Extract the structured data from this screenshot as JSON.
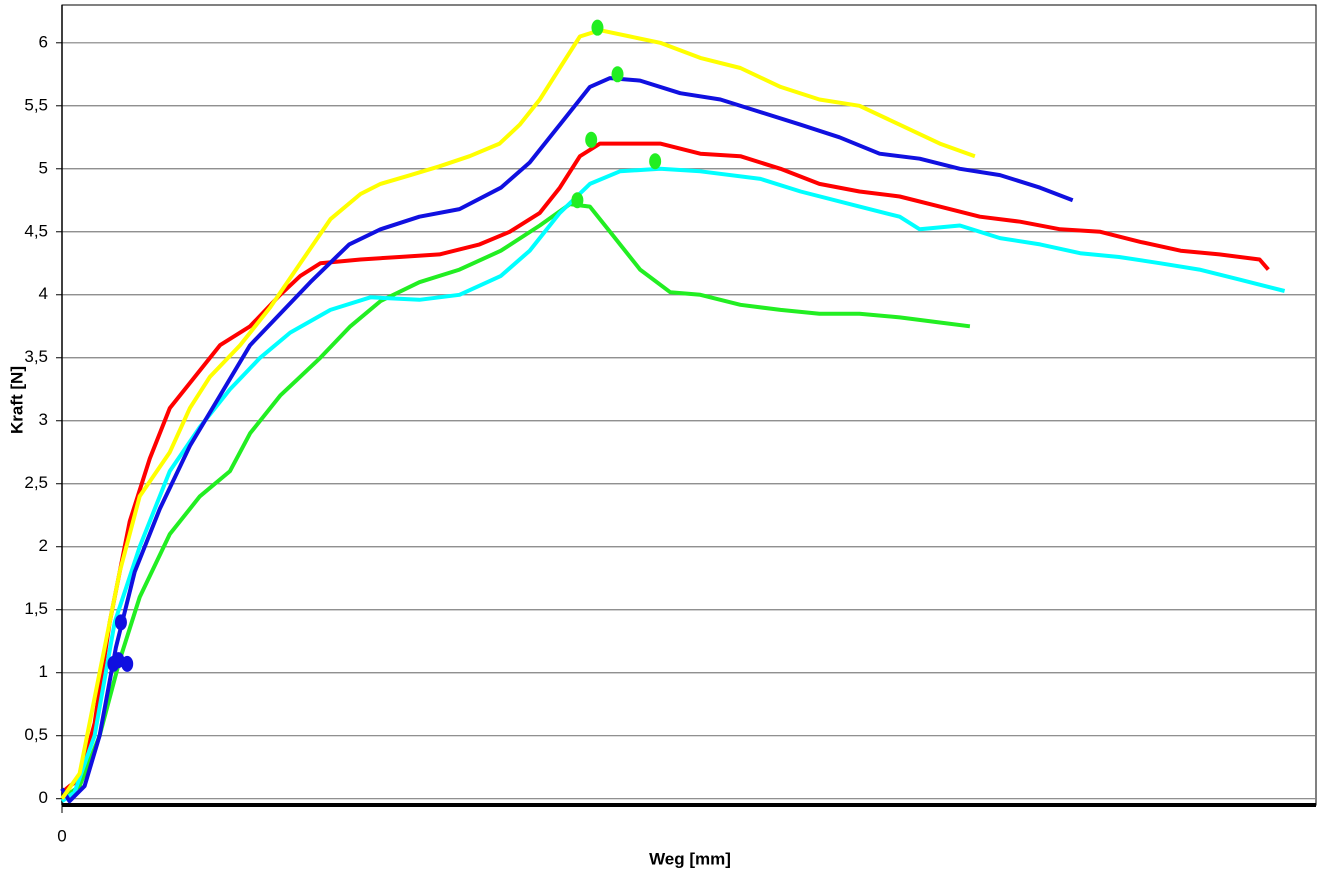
{
  "chart_data": {
    "type": "line",
    "xlabel": "Weg [mm]",
    "ylabel": "Kraft [N]",
    "xlim": [
      0,
      100
    ],
    "ylim": [
      -0.05,
      6.3
    ],
    "xticks": [
      0
    ],
    "yticks": [
      0,
      {
        "value": 0.5,
        "label": "0,5"
      },
      1,
      {
        "value": 1.5,
        "label": "1,5"
      },
      2,
      {
        "value": 2.5,
        "label": "2,5"
      },
      3,
      {
        "value": 3.5,
        "label": "3,5"
      },
      4,
      {
        "value": 4.5,
        "label": "4,5"
      },
      5,
      {
        "value": 5.5,
        "label": "5,5"
      },
      6
    ],
    "grid": true,
    "series": [
      {
        "color": "#ff0000",
        "x": [
          0,
          0.6,
          1.4,
          2.6,
          3.8,
          5.4,
          7,
          8.6,
          10.2,
          12.6,
          15,
          17.4,
          19,
          20.6,
          23.8,
          26.9,
          30.1,
          33.3,
          35.7,
          38.1,
          39.7,
          41.3,
          42.9,
          45.3,
          47.7,
          50.9,
          54.1,
          57.3,
          60.4,
          63.6,
          66.8,
          70,
          73.2,
          76.4,
          79.6,
          82.8,
          86,
          89.2,
          92.3,
          95.5,
          96.2
        ],
        "values": [
          0.05,
          0.1,
          0.15,
          0.6,
          1.4,
          2.2,
          2.7,
          3.1,
          3.3,
          3.6,
          3.75,
          4.0,
          4.15,
          4.25,
          4.28,
          4.3,
          4.32,
          4.4,
          4.5,
          4.65,
          4.85,
          5.1,
          5.2,
          5.2,
          5.2,
          5.12,
          5.1,
          5.0,
          4.88,
          4.82,
          4.78,
          4.7,
          4.62,
          4.58,
          4.52,
          4.5,
          4.42,
          4.35,
          4.32,
          4.28,
          4.2
        ]
      },
      {
        "color": "#22ee22",
        "x": [
          0,
          1.4,
          3,
          4.6,
          6.2,
          8.6,
          11,
          13.4,
          15,
          17.4,
          19,
          20.6,
          23,
          25.4,
          28.5,
          31.7,
          35,
          38.1,
          40.5,
          42.1,
          43.7,
          46.1,
          48.5,
          50.9,
          54.1,
          57.3,
          60.4,
          63.6,
          66.8,
          70,
          72.4
        ],
        "values": [
          0,
          0.1,
          0.5,
          1.1,
          1.6,
          2.1,
          2.4,
          2.6,
          2.9,
          3.2,
          3.35,
          3.5,
          3.75,
          3.95,
          4.1,
          4.2,
          4.35,
          4.55,
          4.72,
          4.7,
          4.5,
          4.2,
          4.02,
          4.0,
          3.92,
          3.88,
          3.85,
          3.85,
          3.82,
          3.78,
          3.75
        ]
      },
      {
        "color": "#00ffff",
        "x": [
          0,
          1,
          2.6,
          4.2,
          6.2,
          8.6,
          11,
          13.4,
          15.8,
          18.2,
          21.4,
          24.6,
          28.5,
          31.7,
          35,
          37.3,
          39.7,
          42.1,
          44.5,
          47.7,
          50.9,
          55.7,
          58.9,
          63.6,
          66.8,
          68.4,
          71.6,
          74.8,
          78,
          81.2,
          84.3,
          87.6,
          90.7,
          93.9,
          97.5
        ],
        "values": [
          -0.02,
          0.05,
          0.5,
          1.4,
          2.0,
          2.6,
          2.95,
          3.25,
          3.5,
          3.7,
          3.88,
          3.98,
          3.96,
          4.0,
          4.15,
          4.35,
          4.65,
          4.88,
          4.98,
          5.0,
          4.98,
          4.92,
          4.82,
          4.7,
          4.62,
          4.52,
          4.55,
          4.45,
          4.4,
          4.33,
          4.3,
          4.25,
          4.2,
          4.12,
          4.03
        ]
      },
      {
        "color": "#1010e0",
        "x": [
          0,
          0.6,
          1.8,
          3,
          4.3,
          5.8,
          7.8,
          10.2,
          12.6,
          15,
          17.4,
          19.8,
          22.9,
          25.4,
          28.5,
          31.7,
          35,
          37.3,
          39.7,
          42.1,
          43.7,
          46.1,
          49.3,
          52.5,
          55.7,
          58.9,
          62,
          65.2,
          68.4,
          71.6,
          74.8,
          78,
          80.6
        ],
        "values": [
          0.08,
          -0.02,
          0.1,
          0.5,
          1.2,
          1.8,
          2.3,
          2.8,
          3.2,
          3.6,
          3.85,
          4.1,
          4.4,
          4.52,
          4.62,
          4.68,
          4.85,
          5.05,
          5.35,
          5.65,
          5.72,
          5.7,
          5.6,
          5.55,
          5.45,
          5.35,
          5.25,
          5.12,
          5.08,
          5.0,
          4.95,
          4.85,
          4.75
        ]
      },
      {
        "color": "#ffff00",
        "x": [
          0,
          1.4,
          3,
          4.6,
          6.2,
          8.6,
          10.2,
          11.8,
          14.2,
          16.6,
          19,
          21.4,
          23.8,
          25.4,
          27.8,
          30.1,
          32.5,
          34.9,
          36.5,
          38.1,
          39.7,
          41.3,
          42.9,
          45.3,
          47.7,
          50.9,
          54.1,
          57.3,
          60.4,
          63.6,
          66.8,
          70,
          72.8
        ],
        "values": [
          0,
          0.2,
          1.0,
          1.8,
          2.4,
          2.75,
          3.1,
          3.35,
          3.6,
          3.9,
          4.25,
          4.6,
          4.8,
          4.88,
          4.95,
          5.02,
          5.1,
          5.2,
          5.35,
          5.55,
          5.8,
          6.05,
          6.1,
          6.05,
          6.0,
          5.88,
          5.8,
          5.65,
          5.55,
          5.5,
          5.35,
          5.2,
          5.1
        ]
      }
    ],
    "markers": [
      {
        "color": "#22ee22",
        "x": [
          42.7,
          44.3,
          42.2,
          47.3,
          41.1
        ],
        "values": [
          6.12,
          5.75,
          5.23,
          5.06,
          4.75
        ]
      },
      {
        "color": "#1010e0",
        "x": [
          4.7,
          4.1,
          4.5,
          5.2
        ],
        "values": [
          1.4,
          1.07,
          1.1,
          1.07
        ]
      }
    ]
  }
}
